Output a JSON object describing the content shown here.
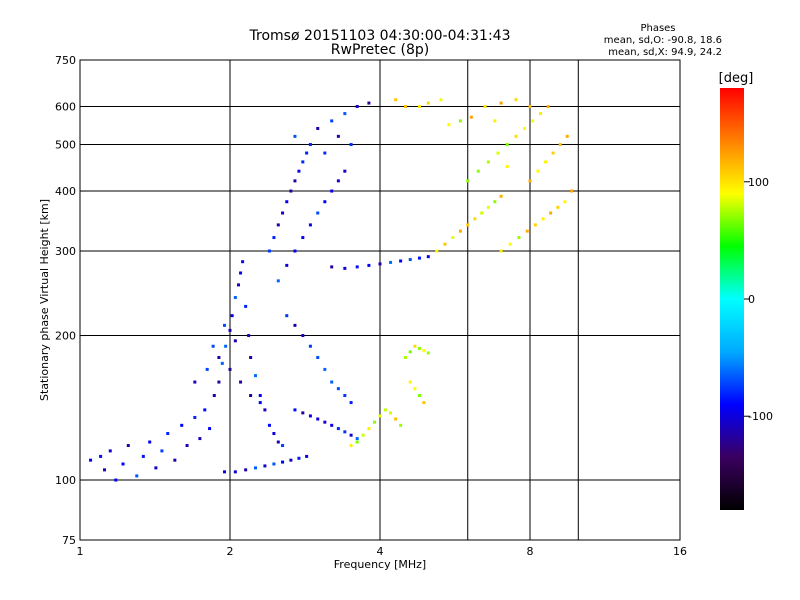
{
  "header": {
    "title": "Tromsø 20151103 04:30:00-04:31:43",
    "subtitle": "RwPretec (8p)",
    "stats_heading": "Phases",
    "stats_o": "mean, sd,O: -90.8, 18.6",
    "stats_x": "mean, sd,X:  94.9, 24.2"
  },
  "chart_data": {
    "type": "scatter",
    "title": "Tromsø 20151103 04:30:00-04:31:43",
    "subtitle": "RwPretec (8p)",
    "xlabel": "Frequency [MHz]",
    "ylabel": "Stationary phase Virtual Height [km]",
    "x_scale": "log",
    "y_scale": "log",
    "xlim": [
      1,
      16
    ],
    "ylim": [
      75,
      750
    ],
    "x_ticks": [
      1,
      2,
      4,
      8,
      16
    ],
    "x_grid_lines": [
      2,
      4,
      6,
      8,
      10
    ],
    "y_ticks": [
      75,
      100,
      200,
      300,
      400,
      500,
      600,
      750
    ],
    "y_grid_lines": [
      100,
      200,
      300,
      400,
      500,
      600
    ],
    "grid": true,
    "colorbar": {
      "label": "[deg]",
      "range": [
        -180,
        180
      ],
      "ticks": [
        100,
        0,
        -100
      ],
      "colormap": [
        "#000000",
        "#3a0060",
        "#0000ff",
        "#00aaff",
        "#00ffff",
        "#00ff00",
        "#ffff00",
        "#ff8000",
        "#ff0000"
      ]
    },
    "series": [
      {
        "name": "O",
        "phase_deg": -90.8,
        "points": [
          [
            1.05,
            110
          ],
          [
            1.1,
            112
          ],
          [
            1.12,
            105
          ],
          [
            1.15,
            115
          ],
          [
            1.18,
            100
          ],
          [
            1.22,
            108
          ],
          [
            1.25,
            118
          ],
          [
            1.3,
            102
          ],
          [
            1.34,
            112
          ],
          [
            1.38,
            120
          ],
          [
            1.42,
            106
          ],
          [
            1.46,
            115
          ],
          [
            1.5,
            125
          ],
          [
            1.55,
            110
          ],
          [
            1.6,
            130
          ],
          [
            1.64,
            118
          ],
          [
            1.7,
            135
          ],
          [
            1.74,
            122
          ],
          [
            1.78,
            140
          ],
          [
            1.82,
            128
          ],
          [
            1.86,
            150
          ],
          [
            1.9,
            160
          ],
          [
            1.93,
            175
          ],
          [
            1.96,
            190
          ],
          [
            2.0,
            205
          ],
          [
            2.02,
            220
          ],
          [
            2.05,
            240
          ],
          [
            2.08,
            255
          ],
          [
            2.1,
            270
          ],
          [
            2.12,
            285
          ],
          [
            2.15,
            230
          ],
          [
            2.18,
            200
          ],
          [
            2.2,
            180
          ],
          [
            2.25,
            165
          ],
          [
            2.3,
            150
          ],
          [
            2.35,
            140
          ],
          [
            2.4,
            130
          ],
          [
            2.45,
            125
          ],
          [
            2.5,
            120
          ],
          [
            2.55,
            118
          ],
          [
            1.95,
            104
          ],
          [
            2.05,
            104
          ],
          [
            2.15,
            105
          ],
          [
            2.25,
            106
          ],
          [
            2.35,
            107
          ],
          [
            2.45,
            108
          ],
          [
            2.55,
            109
          ],
          [
            2.65,
            110
          ],
          [
            2.75,
            111
          ],
          [
            2.85,
            112
          ],
          [
            2.4,
            300
          ],
          [
            2.45,
            320
          ],
          [
            2.5,
            340
          ],
          [
            2.55,
            360
          ],
          [
            2.6,
            380
          ],
          [
            2.65,
            400
          ],
          [
            2.7,
            420
          ],
          [
            2.75,
            440
          ],
          [
            2.8,
            460
          ],
          [
            2.85,
            480
          ],
          [
            2.5,
            260
          ],
          [
            2.6,
            280
          ],
          [
            2.7,
            300
          ],
          [
            2.8,
            320
          ],
          [
            2.9,
            340
          ],
          [
            3.0,
            360
          ],
          [
            3.1,
            380
          ],
          [
            3.2,
            400
          ],
          [
            3.3,
            420
          ],
          [
            3.4,
            440
          ],
          [
            2.6,
            220
          ],
          [
            2.7,
            210
          ],
          [
            2.8,
            200
          ],
          [
            2.9,
            190
          ],
          [
            3.0,
            180
          ],
          [
            3.1,
            170
          ],
          [
            3.2,
            160
          ],
          [
            3.3,
            155
          ],
          [
            3.4,
            150
          ],
          [
            3.5,
            145
          ],
          [
            2.7,
            140
          ],
          [
            2.8,
            138
          ],
          [
            2.9,
            136
          ],
          [
            3.0,
            134
          ],
          [
            3.1,
            132
          ],
          [
            3.2,
            130
          ],
          [
            3.3,
            128
          ],
          [
            3.4,
            126
          ],
          [
            3.5,
            124
          ],
          [
            3.6,
            122
          ],
          [
            3.2,
            278
          ],
          [
            3.4,
            276
          ],
          [
            3.6,
            278
          ],
          [
            3.8,
            280
          ],
          [
            4.0,
            282
          ],
          [
            4.2,
            284
          ],
          [
            4.4,
            286
          ],
          [
            4.6,
            288
          ],
          [
            4.8,
            290
          ],
          [
            5.0,
            292
          ],
          [
            3.0,
            540
          ],
          [
            3.2,
            560
          ],
          [
            3.4,
            580
          ],
          [
            3.6,
            600
          ],
          [
            3.8,
            610
          ],
          [
            3.3,
            520
          ],
          [
            3.5,
            500
          ],
          [
            3.1,
            480
          ],
          [
            2.9,
            500
          ],
          [
            2.7,
            520
          ],
          [
            1.7,
            160
          ],
          [
            1.8,
            170
          ],
          [
            1.9,
            180
          ],
          [
            2.0,
            170
          ],
          [
            2.1,
            160
          ],
          [
            2.2,
            150
          ],
          [
            2.3,
            145
          ],
          [
            1.85,
            190
          ],
          [
            1.95,
            210
          ],
          [
            2.05,
            195
          ]
        ]
      },
      {
        "name": "X",
        "phase_deg": 94.9,
        "points": [
          [
            3.5,
            118
          ],
          [
            3.6,
            120
          ],
          [
            3.7,
            124
          ],
          [
            3.8,
            128
          ],
          [
            3.9,
            132
          ],
          [
            4.0,
            136
          ],
          [
            4.1,
            140
          ],
          [
            4.2,
            138
          ],
          [
            4.3,
            134
          ],
          [
            4.4,
            130
          ],
          [
            4.5,
            180
          ],
          [
            4.6,
            185
          ],
          [
            4.7,
            190
          ],
          [
            4.8,
            188
          ],
          [
            4.9,
            186
          ],
          [
            5.0,
            184
          ],
          [
            4.6,
            160
          ],
          [
            4.7,
            155
          ],
          [
            4.8,
            150
          ],
          [
            4.9,
            145
          ],
          [
            5.2,
            300
          ],
          [
            5.4,
            310
          ],
          [
            5.6,
            320
          ],
          [
            5.8,
            330
          ],
          [
            6.0,
            340
          ],
          [
            6.2,
            350
          ],
          [
            6.4,
            360
          ],
          [
            6.6,
            370
          ],
          [
            6.8,
            380
          ],
          [
            7.0,
            390
          ],
          [
            6.0,
            420
          ],
          [
            6.3,
            440
          ],
          [
            6.6,
            460
          ],
          [
            6.9,
            480
          ],
          [
            7.2,
            500
          ],
          [
            7.5,
            520
          ],
          [
            7.8,
            540
          ],
          [
            8.1,
            560
          ],
          [
            8.4,
            580
          ],
          [
            8.7,
            600
          ],
          [
            7.0,
            300
          ],
          [
            7.3,
            310
          ],
          [
            7.6,
            320
          ],
          [
            7.9,
            330
          ],
          [
            8.2,
            340
          ],
          [
            8.5,
            350
          ],
          [
            8.8,
            360
          ],
          [
            9.1,
            370
          ],
          [
            9.4,
            380
          ],
          [
            9.7,
            400
          ],
          [
            8.0,
            420
          ],
          [
            8.3,
            440
          ],
          [
            8.6,
            460
          ],
          [
            8.9,
            480
          ],
          [
            9.2,
            500
          ],
          [
            9.5,
            520
          ],
          [
            6.5,
            600
          ],
          [
            7.0,
            610
          ],
          [
            7.5,
            620
          ],
          [
            8.0,
            600
          ],
          [
            5.5,
            550
          ],
          [
            5.8,
            560
          ],
          [
            6.1,
            570
          ],
          [
            4.8,
            600
          ],
          [
            5.0,
            610
          ],
          [
            5.3,
            620
          ],
          [
            4.3,
            620
          ],
          [
            4.5,
            600
          ],
          [
            6.8,
            560
          ],
          [
            7.2,
            450
          ]
        ]
      }
    ]
  }
}
